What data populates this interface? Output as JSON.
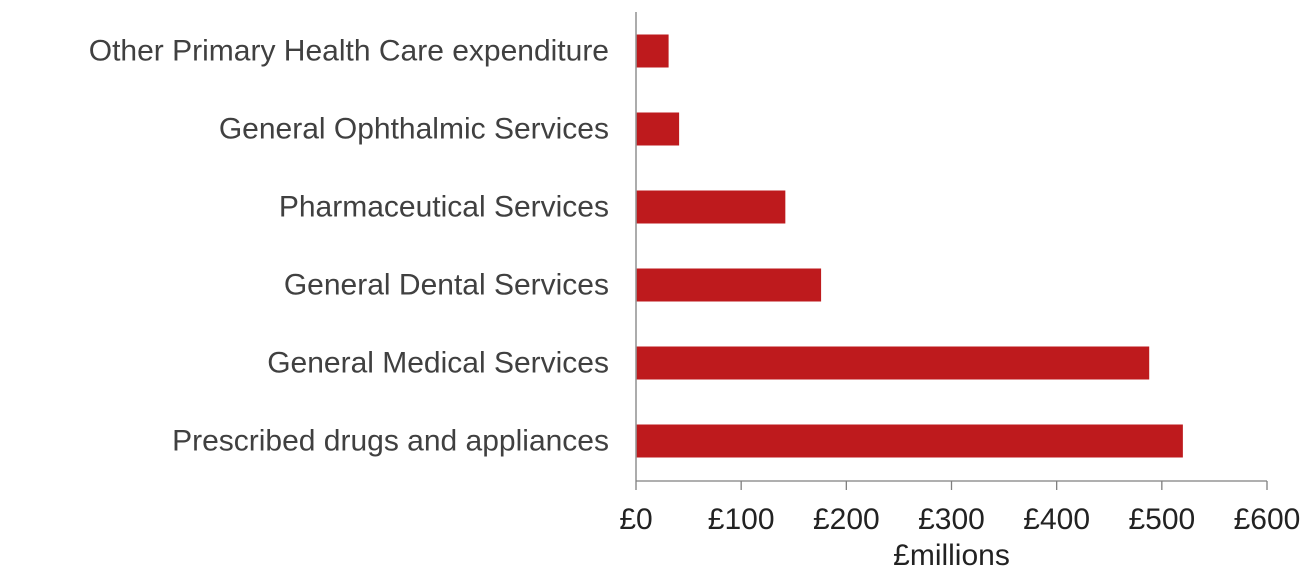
{
  "chart_data": {
    "type": "bar",
    "orientation": "horizontal",
    "categories": [
      "Other Primary Health Care expenditure",
      "General Ophthalmic Services",
      "Pharmaceutical Services",
      "General Dental Services",
      "General Medical Services",
      "Prescribed drugs and appliances"
    ],
    "values": [
      31,
      41,
      142,
      176,
      488,
      520
    ],
    "xlabel": "£millions",
    "ylabel": "",
    "xlim": [
      0,
      600
    ],
    "xticks": [
      "£0",
      "£100",
      "£200",
      "£300",
      "£400",
      "£500",
      "£600"
    ],
    "grid": false,
    "legend": "none",
    "bar_color": "#be1a1d"
  }
}
